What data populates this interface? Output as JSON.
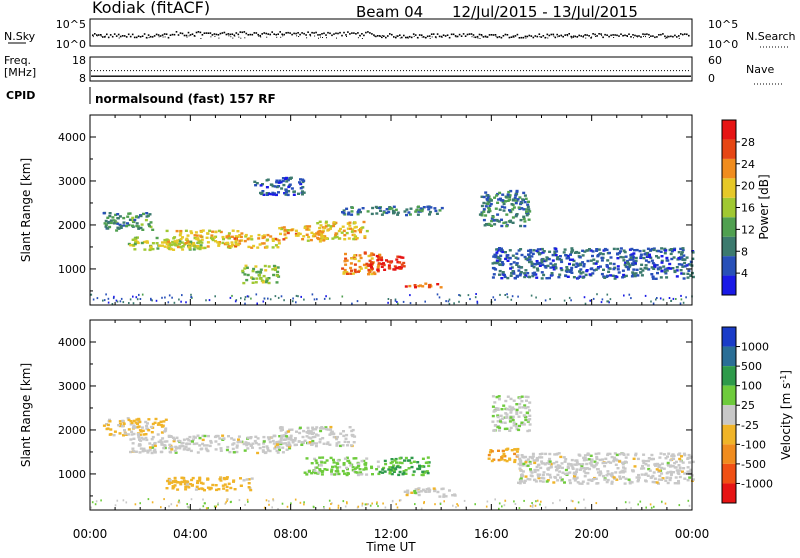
{
  "header": {
    "site": "Kodiak (fitACF)",
    "beam": "Beam 04",
    "dates": "12/Jul/2015 - 13/Jul/2015"
  },
  "noise_panel": {
    "left_label": "N.Sky",
    "left_ticks": [
      "10^5",
      "10^0"
    ],
    "right_label": "N.Search",
    "right_ticks": [
      "10^5",
      "10^0"
    ]
  },
  "freq_panel": {
    "left_label_1": "Freq.",
    "left_label_2": "[MHz]",
    "left_ticks": [
      "18",
      "8"
    ],
    "right_label": "Nave",
    "right_ticks": [
      "60",
      "0"
    ],
    "freq_mhz": 10,
    "nave": 26
  },
  "cpid": {
    "label": "CPID",
    "value": "normalsound (fast) 157 RF"
  },
  "x_axis": {
    "label": "Time UT",
    "ticks": [
      "00:00",
      "04:00",
      "08:00",
      "12:00",
      "16:00",
      "20:00",
      "00:00"
    ]
  },
  "colorbars": {
    "power": {
      "label": "Power [dB]",
      "ticks": [
        "4",
        "8",
        "12",
        "16",
        "20",
        "24",
        "28"
      ],
      "colors": [
        "#1a1ae6",
        "#2850b8",
        "#3c7a6e",
        "#50a050",
        "#a0c832",
        "#e6c828",
        "#f08c1e",
        "#e64614",
        "#e61414"
      ]
    },
    "velocity": {
      "label": "Velocity [m s",
      "label_sup": "-1",
      "label_end": "]",
      "ticks": [
        "1000",
        "500",
        "100",
        "25",
        "-25",
        "-100",
        "-500",
        "-1000"
      ],
      "colors": [
        "#1a3cc8",
        "#2a6e96",
        "#2e9a4a",
        "#6ecb3c",
        "#c8c8c8",
        "#f0b428",
        "#f08c1e",
        "#f05014",
        "#e61414"
      ]
    }
  },
  "chart_data": [
    {
      "type": "heatmap",
      "title": "",
      "xlabel": "Time UT",
      "ylabel": "Slant Range [km]",
      "x_range": [
        "00:00",
        "24:00"
      ],
      "ylim": [
        180,
        4500
      ],
      "y_ticks": [
        1000,
        2000,
        3000,
        4000
      ],
      "value_label": "Power [dB]",
      "value_range": [
        0,
        30
      ],
      "regions": [
        {
          "t0": 0.5,
          "t1": 2.5,
          "r0": 1900,
          "r1": 2300,
          "power": 10
        },
        {
          "t0": 1.5,
          "t1": 4.5,
          "r0": 1450,
          "r1": 1750,
          "power": 16
        },
        {
          "t0": 3.0,
          "t1": 6.0,
          "r0": 1500,
          "r1": 1900,
          "power": 18
        },
        {
          "t0": 5.5,
          "t1": 7.5,
          "r0": 1500,
          "r1": 1800,
          "power": 20
        },
        {
          "t0": 6.0,
          "t1": 7.5,
          "r0": 700,
          "r1": 1100,
          "power": 14
        },
        {
          "t0": 7.5,
          "t1": 9.5,
          "r0": 1650,
          "r1": 2000,
          "power": 20
        },
        {
          "t0": 9.0,
          "t1": 11.0,
          "r0": 1700,
          "r1": 2100,
          "power": 18
        },
        {
          "t0": 10.0,
          "t1": 11.5,
          "r0": 900,
          "r1": 1400,
          "power": 22
        },
        {
          "t0": 11.0,
          "t1": 12.5,
          "r0": 1000,
          "r1": 1350,
          "power": 28
        },
        {
          "t0": 12.5,
          "t1": 14.0,
          "r0": 600,
          "r1": 700,
          "power": 24
        },
        {
          "t0": 6.5,
          "t1": 8.5,
          "r0": 2700,
          "r1": 3100,
          "power": 6
        },
        {
          "t0": 10.0,
          "t1": 14.0,
          "r0": 2250,
          "r1": 2450,
          "power": 8
        },
        {
          "t0": 15.5,
          "t1": 17.5,
          "r0": 2000,
          "r1": 2800,
          "power": 8
        },
        {
          "t0": 16.0,
          "t1": 24.0,
          "r0": 800,
          "r1": 1500,
          "power": 6
        }
      ]
    },
    {
      "type": "heatmap",
      "title": "",
      "xlabel": "Time UT",
      "ylabel": "Slant Range [km]",
      "x_range": [
        "00:00",
        "24:00"
      ],
      "ylim": [
        180,
        4500
      ],
      "y_ticks": [
        1000,
        2000,
        3000,
        4000
      ],
      "value_label": "Velocity [m s-1]",
      "value_range": [
        -1000,
        1000
      ],
      "regions": [
        {
          "t0": 0.5,
          "t1": 3.0,
          "r0": 1900,
          "r1": 2300,
          "velocity": -150
        },
        {
          "t0": 1.5,
          "t1": 8.0,
          "r0": 1500,
          "r1": 1900,
          "velocity": 0
        },
        {
          "t0": 3.0,
          "t1": 6.5,
          "r0": 650,
          "r1": 950,
          "velocity": -200
        },
        {
          "t0": 7.5,
          "t1": 10.5,
          "r0": 1650,
          "r1": 2100,
          "velocity": 0
        },
        {
          "t0": 8.5,
          "t1": 11.5,
          "r0": 1000,
          "r1": 1400,
          "velocity": 150
        },
        {
          "t0": 11.5,
          "t1": 13.5,
          "r0": 1000,
          "r1": 1400,
          "velocity": 300
        },
        {
          "t0": 12.5,
          "t1": 14.5,
          "r0": 500,
          "r1": 700,
          "velocity": 0
        },
        {
          "t0": 15.8,
          "t1": 17.0,
          "r0": 1300,
          "r1": 1600,
          "velocity": -300
        },
        {
          "t0": 16.0,
          "t1": 17.5,
          "r0": 2000,
          "r1": 2800,
          "velocity": 60
        },
        {
          "t0": 17.0,
          "t1": 24.0,
          "r0": 800,
          "r1": 1500,
          "velocity": 0
        }
      ]
    }
  ]
}
